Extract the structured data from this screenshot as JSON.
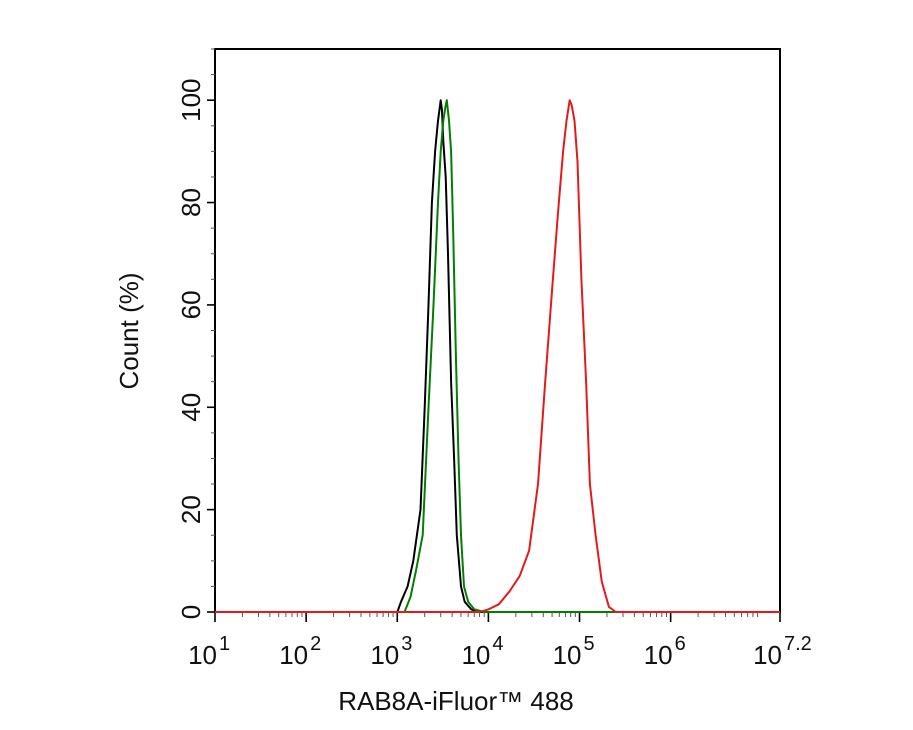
{
  "chart_data": {
    "type": "line",
    "title": "",
    "xlabel": "RAB8A-iFluor™ 488",
    "ylabel": "Count  (%)",
    "xscale": "log",
    "xlim": [
      10,
      15848932
    ],
    "ylim": [
      0,
      110
    ],
    "grid": false,
    "legend": "none",
    "x_ticks": [
      {
        "base": "10",
        "exp": "1"
      },
      {
        "base": "10",
        "exp": "2"
      },
      {
        "base": "10",
        "exp": "3"
      },
      {
        "base": "10",
        "exp": "4"
      },
      {
        "base": "10",
        "exp": "5"
      },
      {
        "base": "10",
        "exp": "6"
      },
      {
        "base": "10",
        "exp": "7.2"
      }
    ],
    "y_ticks": [
      "0",
      "20",
      "40",
      "60",
      "80",
      "100"
    ],
    "series": [
      {
        "color": "#000000",
        "x": [
          1000,
          1100,
          1300,
          1500,
          1800,
          2000,
          2200,
          2400,
          2600,
          2800,
          2900,
          3000,
          3100,
          3200,
          3400,
          3600,
          3900,
          4200,
          4500,
          5000,
          5500,
          6500,
          8000
        ],
        "y": [
          0,
          2,
          5,
          10,
          20,
          40,
          60,
          80,
          90,
          96,
          98,
          100,
          98,
          92,
          85,
          70,
          45,
          30,
          15,
          5,
          2,
          0.5,
          0
        ]
      },
      {
        "color": "#008000",
        "x": [
          1200,
          1400,
          1600,
          1900,
          2200,
          2500,
          2800,
          3000,
          3200,
          3400,
          3500,
          3700,
          3900,
          4100,
          4400,
          4700,
          5000,
          5400,
          6000,
          7000,
          9000
        ],
        "y": [
          0,
          3,
          8,
          15,
          40,
          60,
          80,
          90,
          96,
          99,
          100,
          96,
          90,
          75,
          50,
          30,
          15,
          5,
          2,
          0.5,
          0
        ]
      },
      {
        "color": "#e31a1c",
        "x": [
          8000,
          10000,
          13000,
          17000,
          22000,
          28000,
          35000,
          42000,
          50000,
          58000,
          66000,
          72000,
          78000,
          82000,
          88000,
          95000,
          105000,
          118000,
          130000,
          150000,
          175000,
          210000,
          250000
        ],
        "y": [
          0,
          0.5,
          1.5,
          4,
          7,
          12,
          25,
          45,
          63,
          78,
          90,
          96,
          100,
          99,
          96,
          88,
          65,
          45,
          25,
          15,
          6,
          1,
          0
        ]
      }
    ]
  }
}
